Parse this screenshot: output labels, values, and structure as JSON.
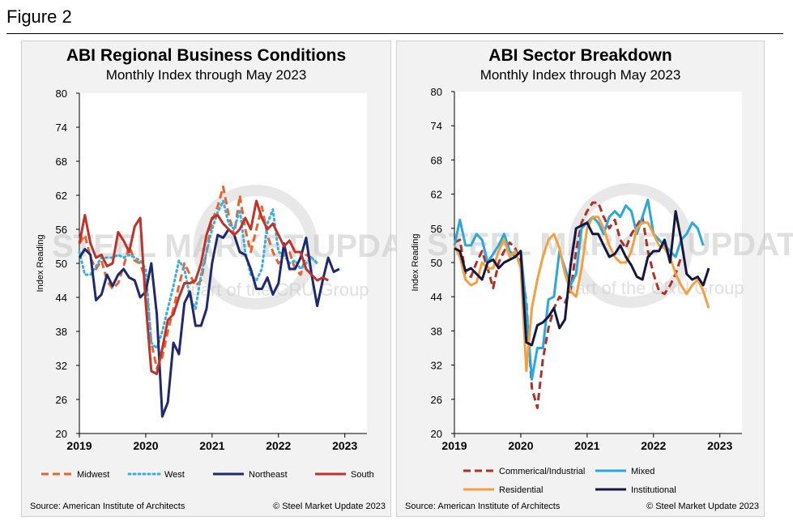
{
  "figure_label": "Figure 2",
  "colors": {
    "midwest": "#e8642e",
    "west": "#3aaee0",
    "northeast": "#1f2a6e",
    "south": "#c0322a",
    "commercial": "#b13025",
    "mixed": "#2aa8dc",
    "residential": "#f5a040",
    "institutional": "#14173f"
  },
  "watermark": {
    "brand": "STEEL MARKET UPDATE",
    "tagline": "part of the CRU Group"
  },
  "chart_data": [
    {
      "type": "line",
      "title": "ABI Regional Business Conditions",
      "subtitle": "Monthly Index through May 2023",
      "ylabel": "Index Reading",
      "xlabel": "",
      "ylim": [
        20,
        80
      ],
      "yticks": [
        20,
        26,
        32,
        38,
        44,
        50,
        56,
        62,
        68,
        74,
        80
      ],
      "xticks": [
        {
          "label": "2019",
          "x": 0
        },
        {
          "label": "2020",
          "x": 12
        },
        {
          "label": "2021",
          "x": 24
        },
        {
          "label": "2022",
          "x": 36
        },
        {
          "label": "2023",
          "x": 48
        }
      ],
      "x_start": 0,
      "x_end": 52,
      "legend_position": "bottom",
      "source": "Source: American Institute of Architects",
      "credit": "© Steel Market Update 2023",
      "series": [
        {
          "name": "Midwest",
          "style": "dashed",
          "colorKey": "midwest",
          "values": [
            53.5,
            55,
            51,
            49,
            50.5,
            47,
            45.5,
            46.5,
            49.5,
            53,
            50.5,
            50,
            47,
            36,
            31.5,
            33.5,
            38,
            42,
            46,
            50,
            48,
            46,
            47,
            52,
            57.5,
            60,
            63.5,
            58.5,
            55,
            62,
            56,
            52,
            56,
            60,
            55,
            52,
            50,
            52,
            52,
            49,
            48,
            51.5,
            51,
            50
          ]
        },
        {
          "name": "West",
          "style": "dotted",
          "colorKey": "west",
          "values": [
            52,
            48,
            48,
            49.5,
            51,
            51,
            51,
            51.5,
            51,
            51.5,
            51,
            50.5,
            49,
            36,
            35,
            38,
            42,
            46,
            50.5,
            49,
            44,
            42,
            48,
            52,
            56,
            59,
            61,
            57,
            56,
            59.5,
            52,
            48,
            47,
            49,
            57,
            59.5,
            52,
            51.5,
            50,
            50.5,
            49,
            50,
            51,
            50
          ]
        },
        {
          "name": "Northeast",
          "style": "solid",
          "colorKey": "northeast",
          "values": [
            51,
            52.5,
            51.5,
            43.5,
            44.5,
            48,
            46,
            48,
            49,
            47.5,
            47,
            44,
            45,
            50,
            41,
            23,
            25.5,
            36,
            34,
            43,
            45,
            39,
            39,
            42,
            50,
            55,
            54.5,
            56,
            55,
            52,
            51.5,
            49,
            45.5,
            45.5,
            47.5,
            44.5,
            46.5,
            53.5,
            49,
            49,
            51,
            54.5,
            48,
            42.5,
            47,
            51,
            48.5,
            49
          ]
        },
        {
          "name": "South",
          "style": "solid",
          "colorKey": "south",
          "values": [
            53.5,
            58.5,
            53.5,
            51,
            51.5,
            49.5,
            50,
            55.5,
            54,
            52,
            56.5,
            58,
            43,
            31,
            30.5,
            35,
            40,
            41,
            44,
            46.5,
            46.5,
            47,
            50,
            55,
            58,
            58.5,
            57,
            56,
            55,
            56,
            58,
            56,
            61,
            58,
            56,
            57,
            55,
            53,
            54,
            52,
            52,
            49,
            48,
            47,
            47.5,
            47
          ]
        }
      ]
    },
    {
      "type": "line",
      "title": "ABI Sector Breakdown",
      "subtitle": "Monthly Index through May 2023",
      "ylabel": "Index Reading",
      "xlabel": "",
      "ylim": [
        20,
        80
      ],
      "yticks": [
        20,
        26,
        32,
        38,
        44,
        50,
        56,
        62,
        68,
        74,
        80
      ],
      "xticks": [
        {
          "label": "2019",
          "x": 0
        },
        {
          "label": "2020",
          "x": 12
        },
        {
          "label": "2021",
          "x": 24
        },
        {
          "label": "2022",
          "x": 36
        },
        {
          "label": "2023",
          "x": 48
        }
      ],
      "x_start": 0,
      "x_end": 52,
      "legend_position": "bottom",
      "source": "Source: American Institute of Architects",
      "credit": "© Steel Market Update 2023",
      "series": [
        {
          "name": "Commerical/Industrial",
          "style": "dashed",
          "colorKey": "commercial",
          "values": [
            53.5,
            54,
            48,
            47.5,
            50,
            52,
            49,
            45.5,
            50,
            52,
            53.5,
            52.5,
            50,
            43,
            28,
            24.5,
            33,
            38.5,
            42,
            44,
            43,
            45,
            52,
            57,
            59,
            60.5,
            60.5,
            58,
            56,
            57.5,
            54,
            52.5,
            55,
            56.5,
            58,
            52,
            48,
            45,
            44.5,
            46,
            48,
            51
          ]
        },
        {
          "name": "Mixed",
          "style": "solid",
          "colorKey": "mixed",
          "values": [
            53,
            57.5,
            53,
            53,
            55,
            54,
            50,
            51.5,
            53,
            55,
            52,
            51,
            52,
            42,
            29.5,
            35,
            35,
            43.5,
            44,
            52,
            49,
            46,
            48,
            56,
            57,
            58,
            57,
            55,
            58,
            59,
            58,
            60,
            59,
            55,
            58,
            61,
            55,
            54,
            53,
            52,
            51,
            54,
            55,
            57,
            56,
            53
          ]
        },
        {
          "name": "Residential",
          "style": "solid",
          "colorKey": "residential",
          "values": [
            53,
            51,
            47,
            46,
            46.5,
            50,
            49,
            49,
            52,
            54,
            51,
            52,
            49,
            31,
            42,
            47,
            51,
            54,
            55,
            52.5,
            48,
            45,
            44,
            49,
            56,
            58,
            58,
            56,
            53,
            51,
            50,
            50,
            52,
            56,
            57,
            57,
            55,
            53,
            52.5,
            51,
            48,
            46,
            44.5,
            46,
            47,
            45,
            42
          ]
        },
        {
          "name": "Institutional",
          "style": "solid",
          "colorKey": "institutional",
          "values": [
            52.5,
            52,
            48.5,
            49,
            48,
            47,
            50,
            50.5,
            49,
            50,
            50.5,
            51,
            52,
            36,
            35.5,
            39,
            39.5,
            40.5,
            42,
            38.5,
            40,
            49.5,
            56,
            56.5,
            57,
            55,
            55,
            53,
            51,
            51.5,
            53,
            51,
            49.5,
            47.5,
            47,
            51,
            52,
            52,
            54,
            50,
            59,
            54,
            48,
            47,
            47.5,
            46,
            49
          ]
        }
      ]
    }
  ],
  "legends": [
    [
      {
        "label": "Midwest",
        "key": "midwest",
        "style": "dashed"
      },
      {
        "label": "West",
        "key": "west",
        "style": "dotted"
      },
      {
        "label": "Northeast",
        "key": "northeast",
        "style": "solid"
      },
      {
        "label": "South",
        "key": "south",
        "style": "solid"
      }
    ],
    [
      {
        "label": "Commerical/Industrial",
        "key": "commercial",
        "style": "dashed"
      },
      {
        "label": "Mixed",
        "key": "mixed",
        "style": "solid"
      },
      {
        "label": "Residential",
        "key": "residential",
        "style": "solid"
      },
      {
        "label": "Institutional",
        "key": "institutional",
        "style": "solid"
      }
    ]
  ]
}
